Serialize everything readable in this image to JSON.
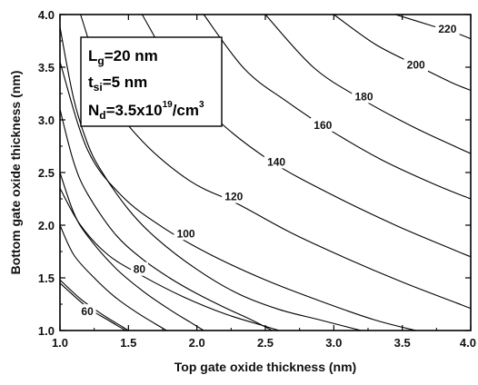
{
  "chart_data": {
    "type": "contour",
    "xlabel": "Top gate oxide thickness (nm)",
    "ylabel": "Bottom gate oxide thickness (nm)",
    "xlim": [
      1.0,
      4.0
    ],
    "ylim": [
      1.0,
      4.0
    ],
    "x_ticks": [
      "1.0",
      "1.5",
      "2.0",
      "2.5",
      "3.0",
      "3.5",
      "4.0"
    ],
    "y_ticks": [
      "1.0",
      "1.5",
      "2.0",
      "2.5",
      "3.0",
      "3.5",
      "4.0"
    ],
    "grid": false,
    "legend_box": {
      "position": "top-left",
      "line1": {
        "main": "L",
        "sub": "g",
        "rest": "=20 nm"
      },
      "line2": {
        "main": "t",
        "sub": "si",
        "rest": "=5 nm"
      },
      "line3": {
        "main": "N",
        "sub": "d",
        "rest": "=3.5x10",
        "sup": "19",
        "rest2": "/cm",
        "sup2": "3"
      }
    },
    "contours": [
      {
        "level": "",
        "points": [
          [
            1.0,
            3.88
          ],
          [
            1.1,
            3.2
          ],
          [
            1.2,
            2.78
          ],
          [
            1.3,
            2.52
          ],
          [
            1.5,
            2.15
          ],
          [
            1.7,
            1.88
          ],
          [
            2.0,
            1.58
          ],
          [
            2.3,
            1.35
          ],
          [
            2.6,
            1.2
          ],
          [
            2.9,
            1.1
          ],
          [
            3.2,
            1.0
          ]
        ]
      },
      {
        "level": "",
        "points": [
          [
            1.0,
            3.1
          ],
          [
            1.1,
            2.6
          ],
          [
            1.2,
            2.3
          ],
          [
            1.4,
            1.92
          ],
          [
            1.6,
            1.68
          ],
          [
            1.8,
            1.5
          ],
          [
            2.0,
            1.35
          ],
          [
            2.2,
            1.22
          ],
          [
            2.4,
            1.1
          ],
          [
            2.55,
            1.0
          ]
        ]
      },
      {
        "level": "",
        "points": [
          [
            1.0,
            2.5
          ],
          [
            1.1,
            2.12
          ],
          [
            1.2,
            1.9
          ],
          [
            1.4,
            1.6
          ],
          [
            1.6,
            1.38
          ],
          [
            1.8,
            1.2
          ],
          [
            1.95,
            1.08
          ],
          [
            2.05,
            1.0
          ]
        ]
      },
      {
        "level": "",
        "points": [
          [
            1.0,
            2.0
          ],
          [
            1.1,
            1.72
          ],
          [
            1.25,
            1.5
          ],
          [
            1.4,
            1.32
          ],
          [
            1.55,
            1.18
          ],
          [
            1.7,
            1.06
          ],
          [
            1.78,
            1.0
          ]
        ]
      },
      {
        "level": "",
        "points": [
          [
            1.0,
            1.45
          ],
          [
            1.2,
            1.22
          ],
          [
            1.35,
            1.1
          ],
          [
            1.48,
            1.0
          ]
        ]
      },
      {
        "level": "60",
        "label_at": [
          1.2,
          1.18
        ],
        "points": [
          [
            1.0,
            1.48
          ],
          [
            1.15,
            1.3
          ],
          [
            1.3,
            1.16
          ],
          [
            1.45,
            1.04
          ],
          [
            1.5,
            1.0
          ]
        ]
      },
      {
        "level": "80",
        "label_at": [
          1.58,
          1.58
        ],
        "points": [
          [
            1.0,
            2.35
          ],
          [
            1.15,
            2.0
          ],
          [
            1.35,
            1.72
          ],
          [
            1.6,
            1.52
          ],
          [
            1.9,
            1.32
          ],
          [
            2.2,
            1.16
          ],
          [
            2.5,
            1.04
          ],
          [
            2.6,
            1.0
          ]
        ]
      },
      {
        "level": "100",
        "label_at": [
          1.92,
          1.92
        ],
        "points": [
          [
            1.0,
            3.55
          ],
          [
            1.2,
            2.72
          ],
          [
            1.45,
            2.28
          ],
          [
            1.75,
            1.98
          ],
          [
            2.1,
            1.72
          ],
          [
            2.5,
            1.48
          ],
          [
            2.9,
            1.28
          ],
          [
            3.3,
            1.1
          ],
          [
            3.6,
            1.0
          ]
        ]
      },
      {
        "level": "120",
        "label_at": [
          2.27,
          2.27
        ],
        "points": [
          [
            1.15,
            4.0
          ],
          [
            1.35,
            3.25
          ],
          [
            1.6,
            2.8
          ],
          [
            1.95,
            2.42
          ],
          [
            2.3,
            2.2
          ],
          [
            2.7,
            1.92
          ],
          [
            3.1,
            1.68
          ],
          [
            3.5,
            1.46
          ],
          [
            3.9,
            1.26
          ],
          [
            4.0,
            1.21
          ]
        ]
      },
      {
        "level": "140",
        "label_at": [
          2.58,
          2.6
        ],
        "points": [
          [
            1.6,
            4.0
          ],
          [
            1.85,
            3.45
          ],
          [
            2.15,
            3.0
          ],
          [
            2.55,
            2.6
          ],
          [
            3.0,
            2.28
          ],
          [
            3.45,
            2.0
          ],
          [
            3.85,
            1.78
          ],
          [
            4.0,
            1.7
          ]
        ]
      },
      {
        "level": "160",
        "label_at": [
          2.92,
          2.95
        ],
        "points": [
          [
            2.05,
            4.0
          ],
          [
            2.35,
            3.48
          ],
          [
            2.65,
            3.18
          ],
          [
            2.95,
            2.92
          ],
          [
            3.35,
            2.62
          ],
          [
            3.75,
            2.38
          ],
          [
            4.0,
            2.25
          ]
        ]
      },
      {
        "level": "180",
        "label_at": [
          3.22,
          3.22
        ],
        "points": [
          [
            2.5,
            4.0
          ],
          [
            2.85,
            3.5
          ],
          [
            3.2,
            3.2
          ],
          [
            3.6,
            2.92
          ],
          [
            4.0,
            2.68
          ]
        ]
      },
      {
        "level": "200",
        "label_at": [
          3.6,
          3.52
        ],
        "points": [
          [
            3.0,
            4.0
          ],
          [
            3.3,
            3.72
          ],
          [
            3.6,
            3.52
          ],
          [
            3.85,
            3.36
          ],
          [
            4.0,
            3.28
          ]
        ]
      },
      {
        "level": "220",
        "label_at": [
          3.83,
          3.86
        ],
        "points": [
          [
            3.45,
            4.0
          ],
          [
            3.7,
            3.9
          ],
          [
            3.9,
            3.82
          ],
          [
            4.0,
            3.77
          ]
        ]
      }
    ]
  }
}
